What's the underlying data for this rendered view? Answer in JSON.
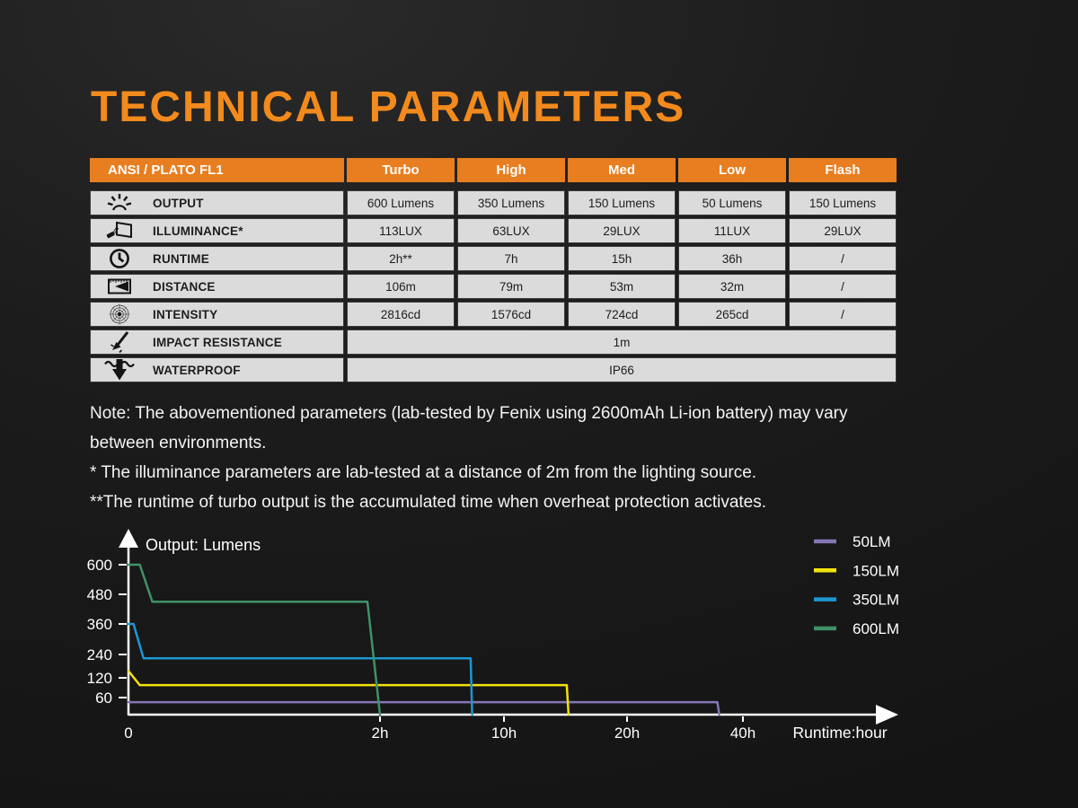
{
  "title": "TECHNICAL PARAMETERS",
  "colors": {
    "accent_orange": "#F28A1D",
    "header_orange": "#E87E20",
    "table_cell_gray": "#DBDBDB"
  },
  "table": {
    "header": [
      "ANSI / PLATO FL1",
      "Turbo",
      "High",
      "Med",
      "Low",
      "Flash"
    ],
    "rows": [
      {
        "icon": "output-icon",
        "label": "OUTPUT",
        "values": [
          "600 Lumens",
          "350 Lumens",
          "150 Lumens",
          "50 Lumens",
          "150 Lumens"
        ]
      },
      {
        "icon": "illuminance-icon",
        "label": "ILLUMINANCE*",
        "values": [
          "113LUX",
          "63LUX",
          "29LUX",
          "11LUX",
          "29LUX"
        ]
      },
      {
        "icon": "runtime-icon",
        "label": "RUNTIME",
        "values": [
          "2h**",
          "7h",
          "15h",
          "36h",
          "/"
        ]
      },
      {
        "icon": "distance-icon",
        "label": "DISTANCE",
        "values": [
          "106m",
          "79m",
          "53m",
          "32m",
          "/"
        ]
      },
      {
        "icon": "intensity-icon",
        "label": "INTENSITY",
        "values": [
          "2816cd",
          "1576cd",
          "724cd",
          "265cd",
          "/"
        ]
      },
      {
        "icon": "impact-icon",
        "label": "IMPACT RESISTANCE",
        "values": [
          "1m"
        ]
      },
      {
        "icon": "waterproof-icon",
        "label": "WATERPROOF",
        "values": [
          "IP66"
        ]
      }
    ]
  },
  "notes": [
    "Note: The abovementioned parameters (lab-tested by Fenix using 2600mAh Li-ion battery) may vary between environments.",
    "* The illuminance parameters are lab-tested at a distance of 2m from the lighting source.",
    "**The runtime of turbo output is the accumulated time when overheat protection activates."
  ],
  "chart_data": {
    "type": "line",
    "title": "",
    "xlabel": "Runtime:hour",
    "ylabel": "Output: Lumens",
    "x_ticks": [
      {
        "label": "0",
        "value": 0
      },
      {
        "label": "2h",
        "value": 2
      },
      {
        "label": "10h",
        "value": 10
      },
      {
        "label": "20h",
        "value": 20
      },
      {
        "label": "40h",
        "value": 40
      }
    ],
    "y_ticks": [
      600,
      480,
      360,
      240,
      120,
      60
    ],
    "xlim": [
      0,
      46
    ],
    "ylim": [
      0,
      640
    ],
    "grid": false,
    "legend_position": "top-right",
    "axis_note": "x axis is non-linear (compressed after 2h)",
    "series": [
      {
        "name": "50LM",
        "color": "#8577B5",
        "points": [
          [
            0,
            44
          ],
          [
            35.6,
            44
          ],
          [
            35.9,
            0
          ]
        ]
      },
      {
        "name": "150LM",
        "color": "#F2E20C",
        "points": [
          [
            0,
            155
          ],
          [
            0.09,
            98
          ],
          [
            15.1,
            98
          ],
          [
            15.25,
            0
          ]
        ]
      },
      {
        "name": "350LM",
        "color": "#1E96D2",
        "points": [
          [
            0,
            360
          ],
          [
            0.04,
            360
          ],
          [
            0.12,
            220
          ],
          [
            7.85,
            220
          ],
          [
            7.95,
            0
          ]
        ]
      },
      {
        "name": "600LM",
        "color": "#3F9168",
        "points": [
          [
            0,
            600
          ],
          [
            0.09,
            600
          ],
          [
            0.19,
            450
          ],
          [
            1.9,
            450
          ],
          [
            2.0,
            0
          ]
        ]
      }
    ]
  }
}
